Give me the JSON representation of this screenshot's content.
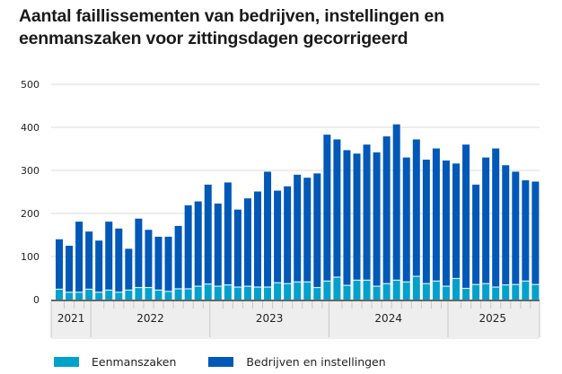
{
  "title": "Aantal faillissementen van bedrijven, instellingen en eenmanszaken voor zittingsdagen gecorrigeerd",
  "colors": {
    "eenmanszaken": "#00a1cd",
    "bedrijven": "#0058b7",
    "grid": "#e2e2e2",
    "axis_band": "#eeeeee",
    "baseline": "#666666"
  },
  "legend": [
    {
      "label": "Eenmanszaken",
      "color": "#00a1cd"
    },
    {
      "label": "Bedrijven en instellingen",
      "color": "#0058b7"
    }
  ],
  "chart_data": {
    "type": "bar",
    "stacked": true,
    "title": "Aantal faillissementen van bedrijven, instellingen en eenmanszaken voor zittingsdagen gecorrigeerd",
    "xlabel": "",
    "ylabel": "",
    "ylim": [
      0,
      500
    ],
    "yticks": [
      0,
      100,
      200,
      300,
      400,
      500
    ],
    "grid": true,
    "legend_position": "bottom-left",
    "year_groups": [
      {
        "label": "2021",
        "months": 4
      },
      {
        "label": "2022",
        "months": 12
      },
      {
        "label": "2023",
        "months": 12
      },
      {
        "label": "2024",
        "months": 12
      },
      {
        "label": "2025",
        "months": 9
      }
    ],
    "categories": [
      "2021-09",
      "2021-10",
      "2021-11",
      "2021-12",
      "2022-01",
      "2022-02",
      "2022-03",
      "2022-04",
      "2022-05",
      "2022-06",
      "2022-07",
      "2022-08",
      "2022-09",
      "2022-10",
      "2022-11",
      "2022-12",
      "2023-01",
      "2023-02",
      "2023-03",
      "2023-04",
      "2023-05",
      "2023-06",
      "2023-07",
      "2023-08",
      "2023-09",
      "2023-10",
      "2023-11",
      "2023-12",
      "2024-01",
      "2024-02",
      "2024-03",
      "2024-04",
      "2024-05",
      "2024-06",
      "2024-07",
      "2024-08",
      "2024-09",
      "2024-10",
      "2024-11",
      "2024-12",
      "2025-01",
      "2025-02",
      "2025-03",
      "2025-04",
      "2025-05",
      "2025-06",
      "2025-07",
      "2025-08",
      "2025-09"
    ],
    "series": [
      {
        "name": "Eenmanszaken",
        "values": [
          24,
          17,
          17,
          24,
          17,
          22,
          17,
          22,
          28,
          28,
          22,
          19,
          25,
          25,
          31,
          36,
          31,
          34,
          29,
          31,
          29,
          29,
          39,
          37,
          41,
          41,
          28,
          43,
          52,
          33,
          45,
          45,
          31,
          37,
          45,
          41,
          54,
          37,
          43,
          31,
          49,
          26,
          35,
          37,
          29,
          34,
          35,
          43,
          35
        ]
      },
      {
        "name": "Bedrijven en instellingen",
        "values": [
          116,
          108,
          164,
          134,
          120,
          159,
          148,
          96,
          160,
          134,
          124,
          127,
          146,
          194,
          197,
          231,
          192,
          238,
          180,
          204,
          222,
          268,
          214,
          226,
          249,
          242,
          265,
          340,
          320,
          314,
          294,
          315,
          311,
          342,
          362,
          289,
          318,
          288,
          308,
          292,
          267,
          334,
          232,
          293,
          322,
          278,
          262,
          234,
          239
        ]
      }
    ],
    "totals": [
      140,
      125,
      181,
      158,
      137,
      181,
      165,
      118,
      188,
      162,
      146,
      146,
      171,
      219,
      228,
      267,
      223,
      272,
      209,
      235,
      251,
      297,
      253,
      263,
      290,
      283,
      293,
      383,
      372,
      347,
      339,
      360,
      342,
      379,
      407,
      330,
      372,
      325,
      351,
      323,
      316,
      360,
      267,
      330,
      351,
      312,
      297,
      277,
      274
    ]
  }
}
